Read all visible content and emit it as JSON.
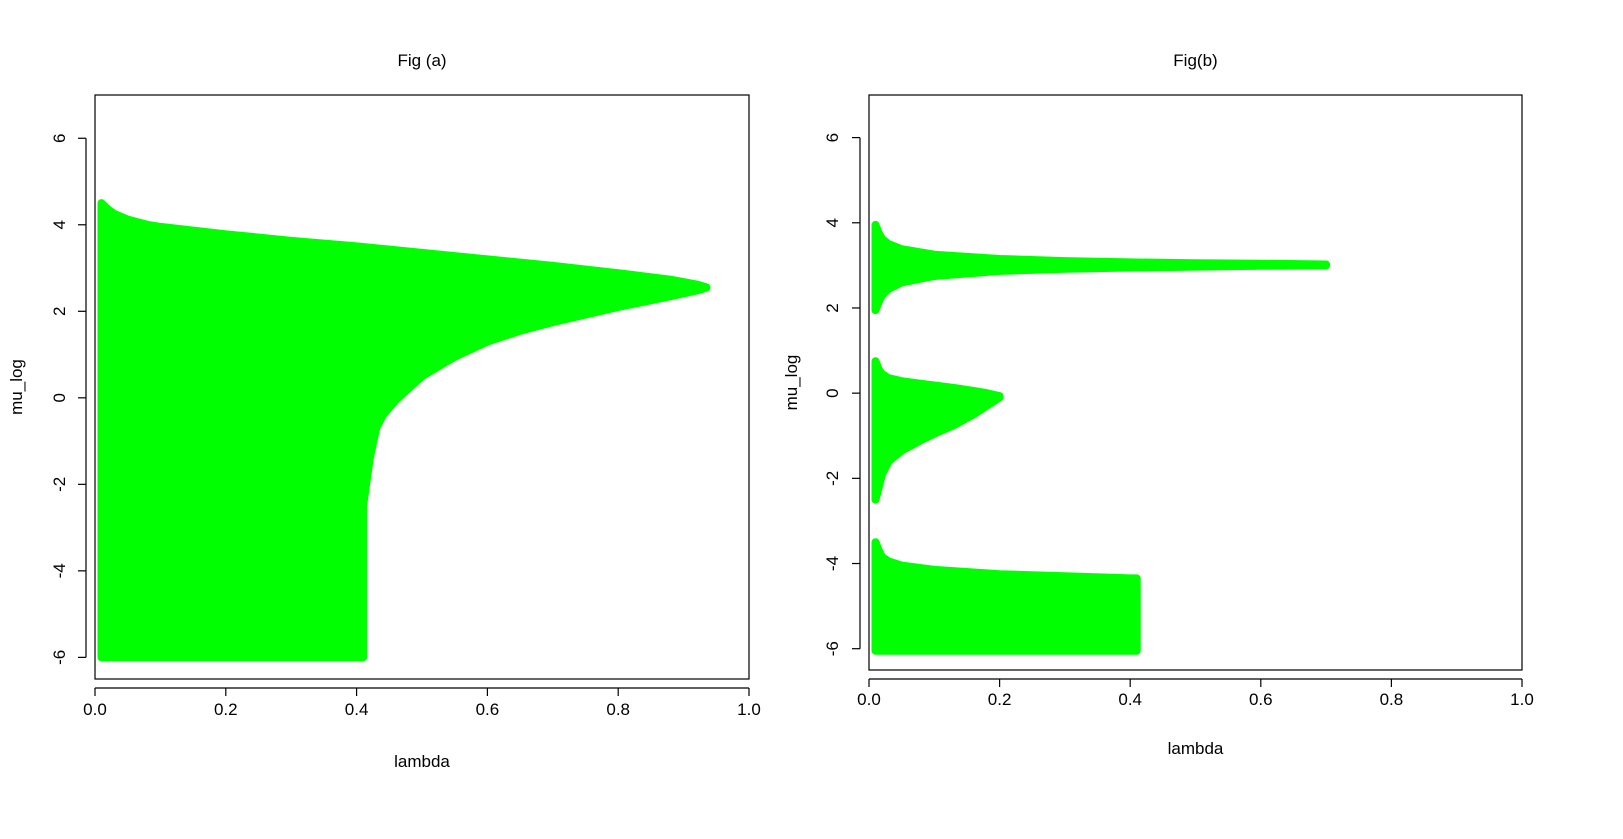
{
  "chart_data": [
    {
      "type": "scatter",
      "title": "Fig (a)",
      "xlabel": "lambda",
      "ylabel": "mu_log",
      "xlim": [
        0.0,
        1.0
      ],
      "ylim": [
        -6.5,
        7.0
      ],
      "xticks": [
        "0.0",
        "0.2",
        "0.4",
        "0.6",
        "0.8",
        "1.0"
      ],
      "xtick_values": [
        0.0,
        0.2,
        0.4,
        0.6,
        0.8,
        1.0
      ],
      "yticks": [
        "-6",
        "-4",
        "-2",
        "0",
        "2",
        "4",
        "6"
      ],
      "ytick_values": [
        -6,
        -4,
        -2,
        0,
        2,
        4,
        6
      ],
      "grid": false,
      "color": "#00ff00",
      "regions": [
        {
          "upper_boundary": [
            [
              0.01,
              4.5
            ],
            [
              0.02,
              4.35
            ],
            [
              0.03,
              4.25
            ],
            [
              0.05,
              4.12
            ],
            [
              0.08,
              4.0
            ],
            [
              0.1,
              3.95
            ],
            [
              0.2,
              3.78
            ],
            [
              0.3,
              3.63
            ],
            [
              0.4,
              3.5
            ],
            [
              0.5,
              3.35
            ],
            [
              0.6,
              3.2
            ],
            [
              0.7,
              3.05
            ],
            [
              0.8,
              2.88
            ],
            [
              0.88,
              2.73
            ],
            [
              0.92,
              2.62
            ],
            [
              0.935,
              2.55
            ]
          ],
          "lower_boundary": [
            [
              0.01,
              -6.0
            ],
            [
              0.41,
              -6.0
            ],
            [
              0.41,
              -2.5
            ],
            [
              0.42,
              -1.4
            ],
            [
              0.43,
              -0.7
            ],
            [
              0.44,
              -0.4
            ],
            [
              0.46,
              -0.05
            ],
            [
              0.5,
              0.5
            ],
            [
              0.55,
              0.95
            ],
            [
              0.6,
              1.3
            ],
            [
              0.65,
              1.55
            ],
            [
              0.7,
              1.75
            ],
            [
              0.8,
              2.1
            ],
            [
              0.88,
              2.35
            ],
            [
              0.92,
              2.48
            ],
            [
              0.935,
              2.55
            ]
          ]
        }
      ]
    },
    {
      "type": "scatter",
      "title": "Fig(b)",
      "xlabel": "lambda",
      "ylabel": "mu_log",
      "xlim": [
        0.0,
        1.0
      ],
      "ylim": [
        -6.5,
        7.0
      ],
      "xticks": [
        "0.0",
        "0.2",
        "0.4",
        "0.6",
        "0.8",
        "1.0"
      ],
      "xtick_values": [
        0.0,
        0.2,
        0.4,
        0.6,
        0.8,
        1.0
      ],
      "yticks": [
        "-6",
        "-4",
        "-2",
        "0",
        "2",
        "4",
        "6"
      ],
      "ytick_values": [
        -6,
        -4,
        -2,
        0,
        2,
        4,
        6
      ],
      "grid": false,
      "color": "#00ff00",
      "regions": [
        {
          "upper_boundary": [
            [
              0.01,
              3.95
            ],
            [
              0.015,
              3.75
            ],
            [
              0.02,
              3.62
            ],
            [
              0.03,
              3.5
            ],
            [
              0.05,
              3.38
            ],
            [
              0.1,
              3.25
            ],
            [
              0.2,
              3.15
            ],
            [
              0.3,
              3.1
            ],
            [
              0.4,
              3.07
            ],
            [
              0.5,
              3.05
            ],
            [
              0.6,
              3.04
            ],
            [
              0.7,
              3.02
            ]
          ],
          "lower_boundary": [
            [
              0.01,
              1.95
            ],
            [
              0.015,
              2.15
            ],
            [
              0.02,
              2.3
            ],
            [
              0.03,
              2.45
            ],
            [
              0.05,
              2.6
            ],
            [
              0.1,
              2.75
            ],
            [
              0.2,
              2.87
            ],
            [
              0.3,
              2.92
            ],
            [
              0.4,
              2.95
            ],
            [
              0.5,
              2.97
            ],
            [
              0.6,
              2.99
            ],
            [
              0.7,
              3.0
            ]
          ]
        },
        {
          "upper_boundary": [
            [
              0.01,
              0.75
            ],
            [
              0.015,
              0.55
            ],
            [
              0.02,
              0.45
            ],
            [
              0.03,
              0.35
            ],
            [
              0.05,
              0.28
            ],
            [
              0.08,
              0.22
            ],
            [
              0.1,
              0.18
            ],
            [
              0.13,
              0.12
            ],
            [
              0.16,
              0.05
            ],
            [
              0.18,
              0.0
            ],
            [
              0.2,
              -0.07
            ]
          ],
          "lower_boundary": [
            [
              0.01,
              -2.5
            ],
            [
              0.015,
              -2.2
            ],
            [
              0.02,
              -1.9
            ],
            [
              0.03,
              -1.6
            ],
            [
              0.05,
              -1.35
            ],
            [
              0.08,
              -1.1
            ],
            [
              0.1,
              -0.95
            ],
            [
              0.13,
              -0.75
            ],
            [
              0.16,
              -0.5
            ],
            [
              0.18,
              -0.3
            ],
            [
              0.2,
              -0.1
            ]
          ]
        },
        {
          "upper_boundary": [
            [
              0.01,
              -3.5
            ],
            [
              0.015,
              -3.7
            ],
            [
              0.02,
              -3.85
            ],
            [
              0.03,
              -3.95
            ],
            [
              0.05,
              -4.05
            ],
            [
              0.1,
              -4.15
            ],
            [
              0.2,
              -4.25
            ],
            [
              0.3,
              -4.3
            ],
            [
              0.4,
              -4.35
            ],
            [
              0.41,
              -4.35
            ]
          ],
          "lower_boundary": [
            [
              0.01,
              -6.05
            ],
            [
              0.41,
              -6.05
            ]
          ]
        }
      ]
    }
  ]
}
